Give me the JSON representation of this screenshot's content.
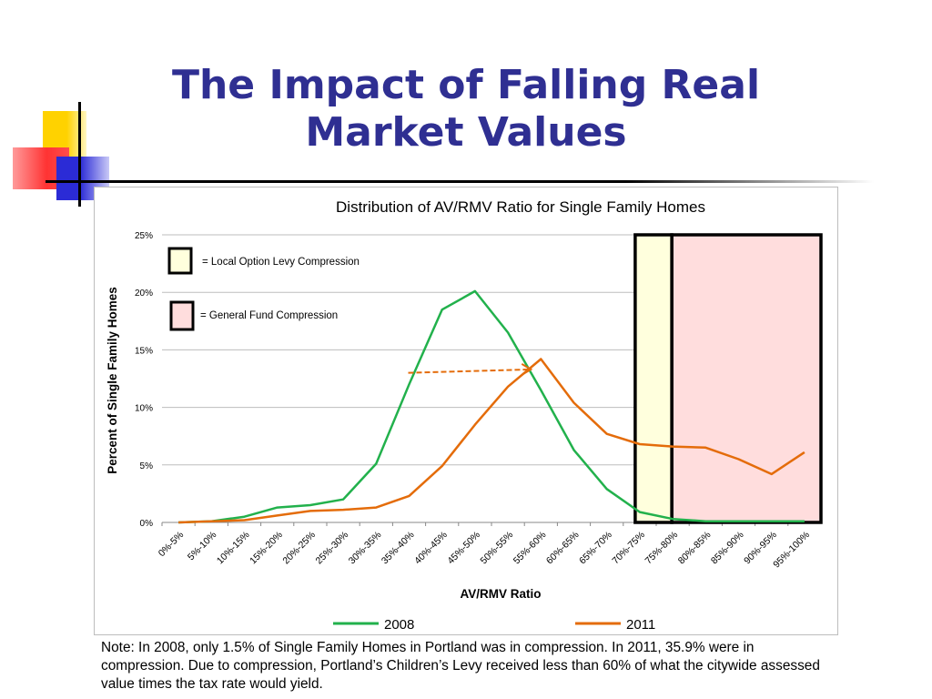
{
  "slide": {
    "title": "The Impact of Falling Real Market Values",
    "note": "Note: In 2008, only 1.5% of Single Family Homes in Portland was in compression. In 2011, 35.9% were in compression. Due to compression, Portland’s Children’s Levy received less than 60% of what the citywide assessed value times the tax rate would yield."
  },
  "colors": {
    "title": "#2f2f92",
    "series_2008": "#22b14c",
    "series_2011": "#e46c0a",
    "local_option_fill": "#ffffdd",
    "general_fund_fill": "#ffdddd",
    "deco_yellow": "#ffd200",
    "deco_red": "#ff3333",
    "deco_blue": "#2b2bd6"
  },
  "chart_data": {
    "type": "line",
    "title": "Distribution of AV/RMV Ratio for Single Family Homes",
    "xlabel": "AV/RMV Ratio",
    "ylabel": "Percent of Single Family Homes",
    "ylim": [
      0,
      25
    ],
    "yticks": [
      "0%",
      "5%",
      "10%",
      "15%",
      "20%",
      "25%"
    ],
    "grid": true,
    "legend_position": "bottom",
    "categories": [
      "0%-5%",
      "5%-10%",
      "10%-15%",
      "15%-20%",
      "20%-25%",
      "25%-30%",
      "30%-35%",
      "35%-40%",
      "40%-45%",
      "45%-50%",
      "50%-55%",
      "55%-60%",
      "60%-65%",
      "65%-70%",
      "70%-75%",
      "75%-80%",
      "80%-85%",
      "85%-90%",
      "90%-95%",
      "95%-100%"
    ],
    "series": [
      {
        "name": "2008",
        "values": [
          0.0,
          0.1,
          0.5,
          1.3,
          1.5,
          2.0,
          5.1,
          12.0,
          18.5,
          20.1,
          16.5,
          11.5,
          6.3,
          2.9,
          0.9,
          0.3,
          0.1,
          0.1,
          0.1,
          0.1
        ]
      },
      {
        "name": "2011",
        "values": [
          0.0,
          0.1,
          0.2,
          0.6,
          1.0,
          1.1,
          1.3,
          2.3,
          4.9,
          8.5,
          11.8,
          14.2,
          10.4,
          7.7,
          6.8,
          6.6,
          6.5,
          5.5,
          4.2,
          6.1
        ]
      }
    ],
    "annotations": {
      "local_option_label": "= Local Option Levy Compression",
      "general_fund_label": "= General Fund Compression",
      "local_option_range": [
        "70%-75%",
        "75%-80%"
      ],
      "general_fund_range": [
        "75%-80%",
        "95%-100%"
      ],
      "shift_arrow": {
        "from_category": "35%-40%",
        "to_category": "55%-60%"
      }
    }
  }
}
